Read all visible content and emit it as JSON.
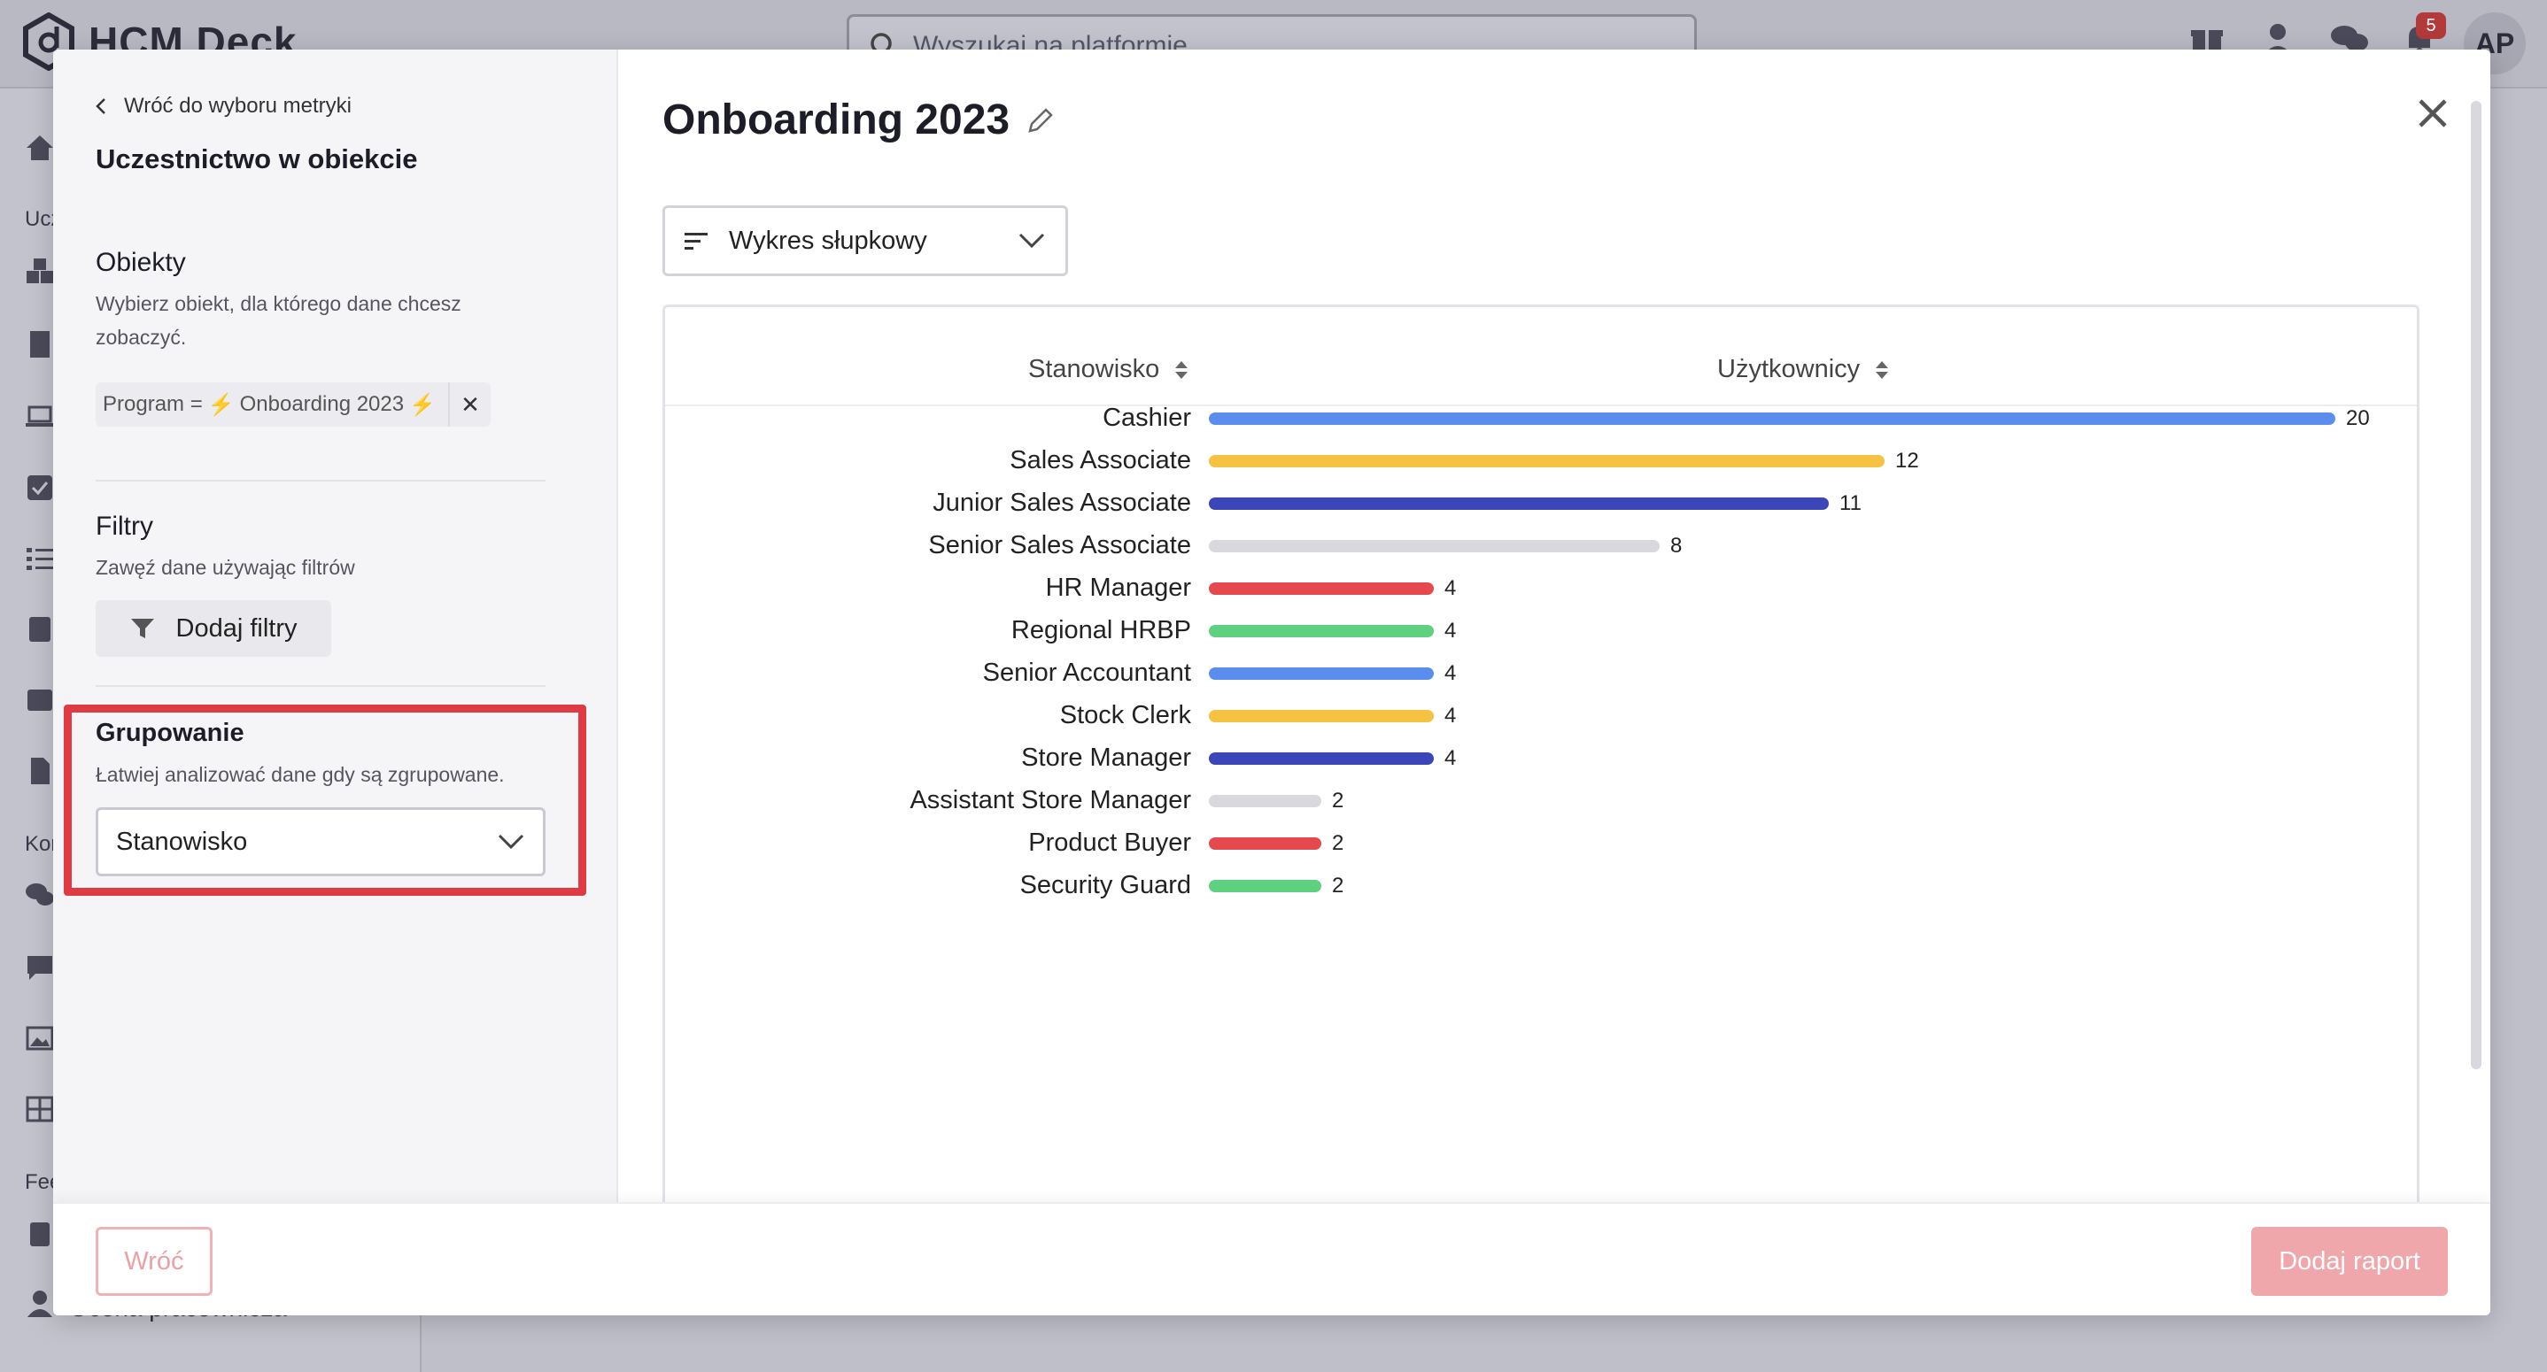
{
  "background": {
    "logo_text": "HCM Deck",
    "search_placeholder": "Wyszukaj na platformie",
    "notification_count": "5",
    "avatar_initials": "AP",
    "sidebar_labels": [
      "Ucz",
      "Kor",
      "Fee"
    ],
    "sidebar_bottom_text": "Ocena pracownicza"
  },
  "modal": {
    "left": {
      "back_label": "Wróć do wyboru metryki",
      "metric_title": "Uczestnictwo w obiekcie",
      "objects": {
        "title": "Obiekty",
        "description": "Wybierz obiekt, dla którego dane chcesz zobaczyć.",
        "chip_prefix": "Program =",
        "chip_value": "Onboarding 2023"
      },
      "filters": {
        "title": "Filtry",
        "description": "Zawęź dane używając filtrów",
        "button_label": "Dodaj filtry"
      },
      "grouping": {
        "title": "Grupowanie",
        "description": "Łatwiej analizować dane gdy są zgrupowane.",
        "selected": "Stanowisko"
      }
    },
    "right": {
      "report_title": "Onboarding 2023",
      "chart_type_selected": "Wykres słupkowy"
    },
    "footer": {
      "back_button": "Wróć",
      "add_button": "Dodaj raport"
    }
  },
  "chart_data": {
    "type": "bar",
    "orientation": "horizontal",
    "column_headers": [
      "Stanowisko",
      "Użytkownicy"
    ],
    "categories": [
      "Cashier",
      "Sales Associate",
      "Junior Sales Associate",
      "Senior Sales Associate",
      "HR Manager",
      "Regional HRBP",
      "Senior Accountant",
      "Stock Clerk",
      "Store Manager",
      "Assistant Store Manager",
      "Product Buyer",
      "Security Guard"
    ],
    "values": [
      20,
      12,
      11,
      8,
      4,
      4,
      4,
      4,
      4,
      2,
      2,
      2
    ],
    "colors": [
      "#5b8def",
      "#f5c242",
      "#3b47b8",
      "#d9d9dd",
      "#e5484d",
      "#5fcf80",
      "#5b8def",
      "#f5c242",
      "#3b47b8",
      "#d9d9dd",
      "#e5484d",
      "#5fcf80"
    ],
    "xlim": [
      0,
      20
    ],
    "grid": false,
    "legend": "none",
    "data_labels": true
  }
}
